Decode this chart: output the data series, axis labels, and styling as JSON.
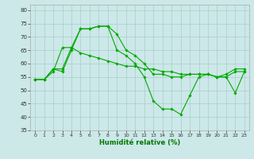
{
  "title": "",
  "xlabel": "Humidité relative (%)",
  "ylabel": "",
  "bg_color": "#cce8e8",
  "grid_color": "#aacccc",
  "line_color": "#00aa00",
  "xlim": [
    -0.5,
    23.5
  ],
  "ylim": [
    35,
    82
  ],
  "yticks": [
    35,
    40,
    45,
    50,
    55,
    60,
    65,
    70,
    75,
    80
  ],
  "xticks": [
    0,
    1,
    2,
    3,
    4,
    5,
    6,
    7,
    8,
    9,
    10,
    11,
    12,
    13,
    14,
    15,
    16,
    17,
    18,
    19,
    20,
    21,
    22,
    23
  ],
  "series": [
    [
      54,
      54,
      58,
      58,
      66,
      73,
      73,
      74,
      74,
      71,
      65,
      63,
      60,
      56,
      56,
      55,
      55,
      56,
      56,
      56,
      55,
      56,
      58,
      58
    ],
    [
      54,
      54,
      58,
      57,
      65,
      73,
      73,
      74,
      74,
      65,
      63,
      60,
      55,
      46,
      43,
      43,
      41,
      48,
      55,
      56,
      55,
      55,
      49,
      57
    ],
    [
      54,
      54,
      57,
      66,
      66,
      64,
      63,
      62,
      61,
      60,
      59,
      59,
      58,
      58,
      57,
      57,
      56,
      56,
      56,
      56,
      55,
      55,
      57,
      57
    ]
  ]
}
